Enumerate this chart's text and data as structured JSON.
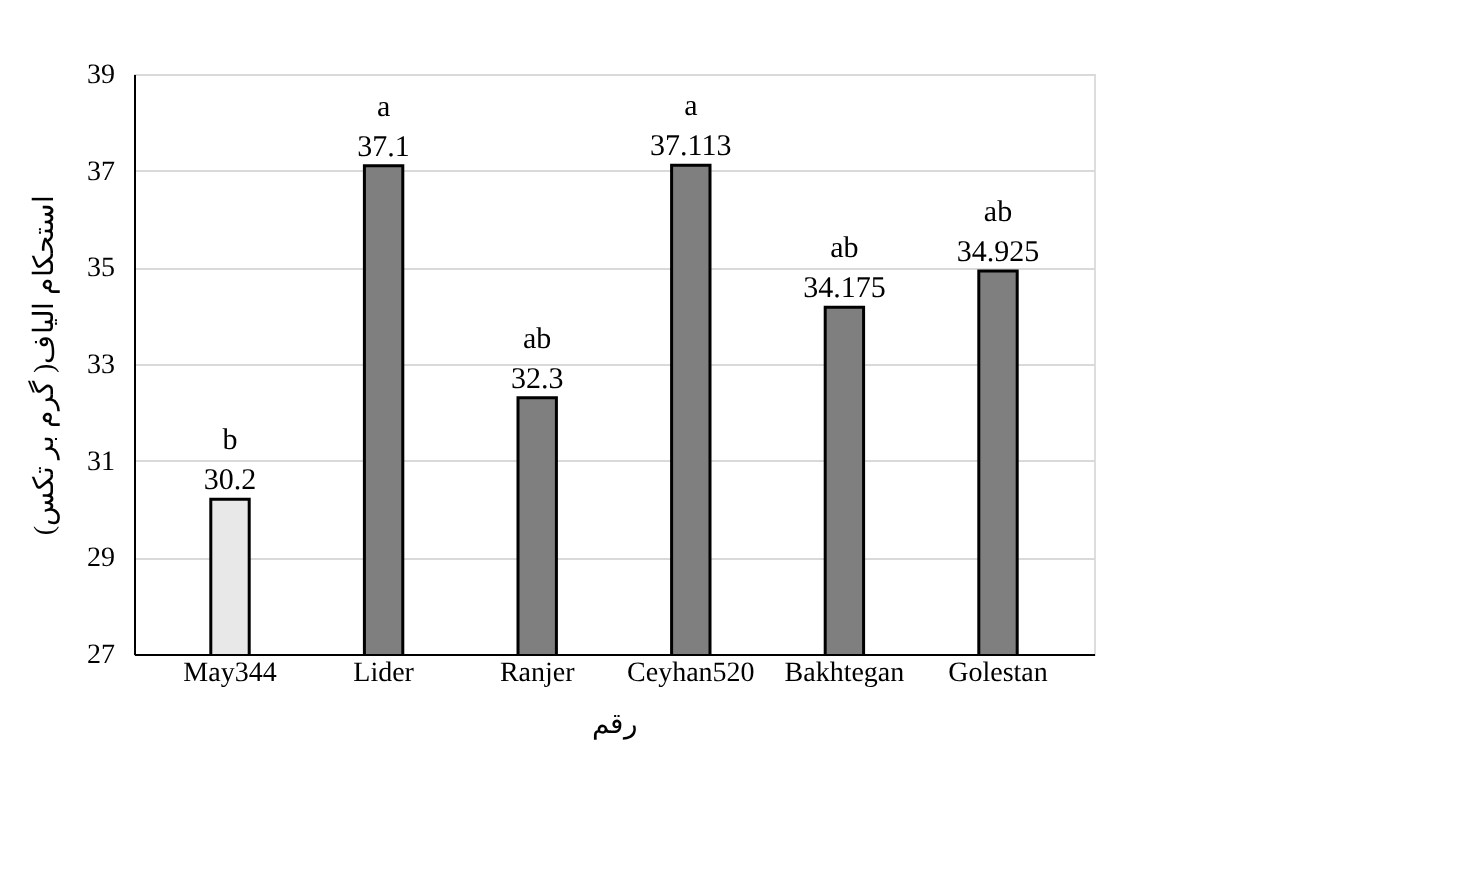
{
  "chart_data": {
    "type": "bar",
    "ylabel": "استحکام الیاف( گرم بر تکس)",
    "xlabel": "رقم",
    "categories": [
      "May344",
      "Lider",
      "Ranjer",
      "Ceyhan520",
      "Bakhtegan",
      "Golestan"
    ],
    "values": [
      30.2,
      37.1,
      32.3,
      37.113,
      34.175,
      34.925
    ],
    "colors": [
      "#e8e8e8",
      "#7f7f7f",
      "#7f7f7f",
      "#7f7f7f",
      "#7f7f7f",
      "#7f7f7f"
    ],
    "value_labels": [
      "30.2",
      "37.1",
      "32.3",
      "37.113",
      "34.175",
      "34.925"
    ],
    "annotations": [
      {
        "text": "b",
        "x": "May344",
        "y": 30.2
      },
      {
        "text": "a",
        "x": "Lider",
        "y": 37.1
      },
      {
        "text": "ab",
        "x": "Ranjer",
        "y": 32.3
      },
      {
        "text": "a",
        "x": "Ceyhan520",
        "y": 37.113
      },
      {
        "text": "ab",
        "x": "Bakhtegan",
        "y": 34.175
      },
      {
        "text": "ab",
        "x": "Golestan",
        "y": 34.925
      }
    ],
    "ylim": [
      27,
      39
    ],
    "yticks": [
      27,
      29,
      31,
      33,
      35,
      37,
      39
    ],
    "grid": "y"
  }
}
